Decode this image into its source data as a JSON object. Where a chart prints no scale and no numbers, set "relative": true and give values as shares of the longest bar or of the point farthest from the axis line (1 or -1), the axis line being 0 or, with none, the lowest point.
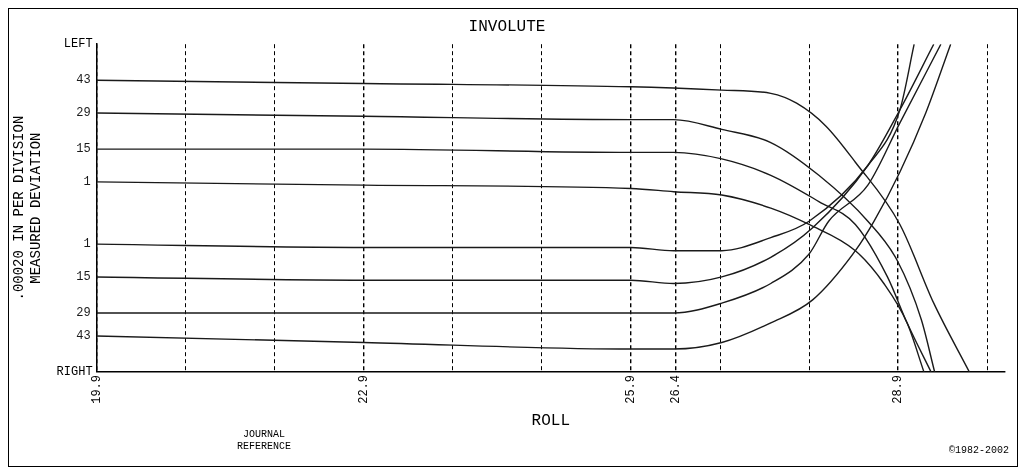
{
  "chart_data": {
    "type": "line",
    "relative": true,
    "title": "INVOLUTE",
    "xlabel": "ROLL",
    "ylabel": ".00020 IN PER DIVISION\nMEASURED DEVIATION",
    "annotations": [
      "JOURNAL REFERENCE",
      "©1982-2002",
      "LEFT",
      "RIGHT"
    ],
    "xlim": [
      19.9,
      30.1
    ],
    "xticks": [
      19.9,
      {
        "value": 20.9,
        "label": null
      },
      {
        "value": 21.9,
        "label": null
      },
      22.9,
      {
        "value": 23.9,
        "label": null
      },
      {
        "value": 24.9,
        "label": null
      },
      25.9,
      26.4,
      {
        "value": 26.9,
        "label": null
      },
      {
        "value": 27.9,
        "label": null
      },
      28.9,
      {
        "value": 29.9,
        "label": null
      }
    ],
    "grid": "x",
    "legend": false,
    "marker": "none",
    "line_style": "solid",
    "series": [
      {
        "name": "43",
        "color": "#1a1a1a",
        "x": [
          19.9,
          22.9,
          25.9,
          26.92,
          27.47,
          27.76,
          28.09,
          28.42,
          28.92,
          29.3,
          29.7
        ],
        "values": [
          0.89,
          0.88,
          0.87,
          0.86,
          0.85,
          0.82,
          0.75,
          0.64,
          0.45,
          0.21,
          0
        ]
      },
      {
        "name": "29",
        "color": "#1a1a1a",
        "x": [
          19.9,
          22.9,
          25.9,
          26.38,
          26.92,
          27.47,
          28.01,
          28.56,
          28.89,
          29.16,
          29.31
        ],
        "values": [
          0.79,
          0.78,
          0.77,
          0.77,
          0.74,
          0.7,
          0.6,
          0.46,
          0.34,
          0.16,
          0
        ]
      },
      {
        "name": "15",
        "color": "#1a1a1a",
        "x": [
          19.9,
          22.9,
          25.9,
          26.38,
          26.92,
          27.47,
          28.01,
          28.42,
          28.78,
          29,
          29.27
        ],
        "values": [
          0.68,
          0.68,
          0.67,
          0.67,
          0.65,
          0.6,
          0.52,
          0.45,
          0.29,
          0.15,
          0
        ]
      },
      {
        "name": "1",
        "color": "#1a1a1a",
        "x": [
          19.9,
          22.9,
          25.9,
          26.38,
          26.92,
          27.47,
          27.9,
          28.42,
          28.74,
          29,
          29.19
        ],
        "values": [
          0.58,
          0.57,
          0.56,
          0.55,
          0.54,
          0.5,
          0.45,
          0.37,
          0.27,
          0.15,
          0
        ]
      },
      {
        "name": "1",
        "color": "#1a1a1a",
        "x": [
          19.9,
          22.9,
          25.9,
          26.38,
          26.92,
          27.47,
          27.9,
          28.56,
          28.92,
          29.08
        ],
        "values": [
          0.39,
          0.38,
          0.38,
          0.37,
          0.37,
          0.41,
          0.46,
          0.63,
          0.8,
          1
        ]
      },
      {
        "name": "15",
        "color": "#1a1a1a",
        "x": [
          19.9,
          22.9,
          25.9,
          26.38,
          26.92,
          27.47,
          27.94,
          28.56,
          28.92,
          29.3
        ],
        "values": [
          0.29,
          0.28,
          0.28,
          0.27,
          0.29,
          0.35,
          0.44,
          0.63,
          0.8,
          1
        ]
      },
      {
        "name": "29",
        "color": "#1a1a1a",
        "x": [
          19.9,
          22.9,
          25.9,
          26.38,
          26.92,
          27.47,
          27.9,
          28.12,
          28.56,
          28.92,
          29.38
        ],
        "values": [
          0.18,
          0.18,
          0.18,
          0.18,
          0.21,
          0.27,
          0.36,
          0.46,
          0.57,
          0.76,
          1
        ]
      },
      {
        "name": "43",
        "color": "#1a1a1a",
        "x": [
          19.9,
          22.9,
          25.9,
          26.38,
          26.92,
          27.47,
          27.94,
          28.42,
          28.63,
          28.92,
          29.21,
          29.49
        ],
        "values": [
          0.11,
          0.09,
          0.07,
          0.07,
          0.09,
          0.15,
          0.22,
          0.37,
          0.46,
          0.61,
          0.79,
          1
        ]
      }
    ]
  }
}
